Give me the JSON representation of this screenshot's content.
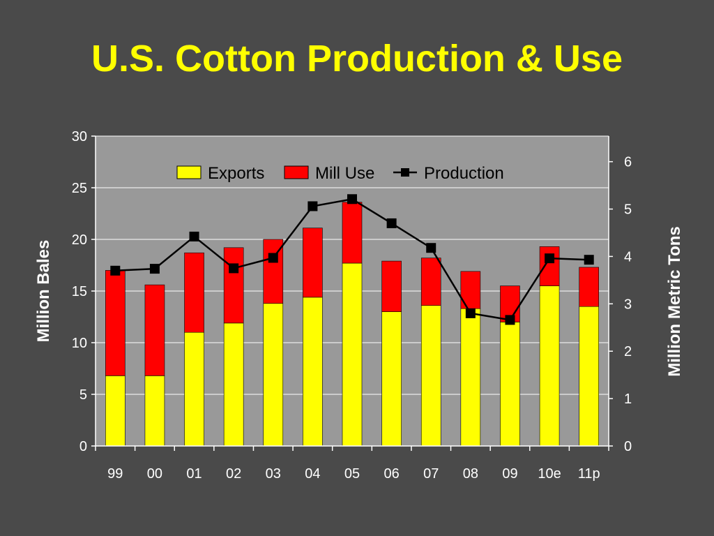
{
  "chart_data": {
    "type": "bar",
    "title": "U.S. Cotton Production & Use",
    "ylabel": "Million Bales",
    "y2label": "Million Metric Tons",
    "categories": [
      "99",
      "00",
      "01",
      "02",
      "03",
      "04",
      "05",
      "06",
      "07",
      "08",
      "09",
      "10e",
      "11p"
    ],
    "ylim": [
      0,
      30
    ],
    "y_ticks": [
      0,
      5,
      10,
      15,
      20,
      25,
      30
    ],
    "y2lim": [
      0,
      6.54
    ],
    "y2_ticks": [
      0,
      1,
      2,
      3,
      4,
      5,
      6
    ],
    "stacked": true,
    "legend_position": "top-center",
    "grid": true,
    "series": [
      {
        "name": "Exports",
        "kind": "bar",
        "axis": "left",
        "color": "#ffff00",
        "values": [
          6.8,
          6.8,
          11.0,
          11.9,
          13.8,
          14.4,
          17.7,
          13.0,
          13.6,
          13.3,
          12.0,
          15.5,
          13.5
        ]
      },
      {
        "name": "Mill Use",
        "kind": "bar",
        "axis": "left",
        "color": "#ff0000",
        "values": [
          10.2,
          8.8,
          7.7,
          7.3,
          6.2,
          6.7,
          5.9,
          4.9,
          4.6,
          3.6,
          3.5,
          3.8,
          3.8
        ]
      },
      {
        "name": "Production",
        "kind": "line",
        "axis": "right",
        "color": "#000000",
        "values": [
          3.7,
          3.74,
          4.42,
          3.75,
          3.97,
          5.06,
          5.21,
          4.7,
          4.18,
          2.8,
          2.66,
          3.96,
          3.93
        ]
      }
    ]
  }
}
